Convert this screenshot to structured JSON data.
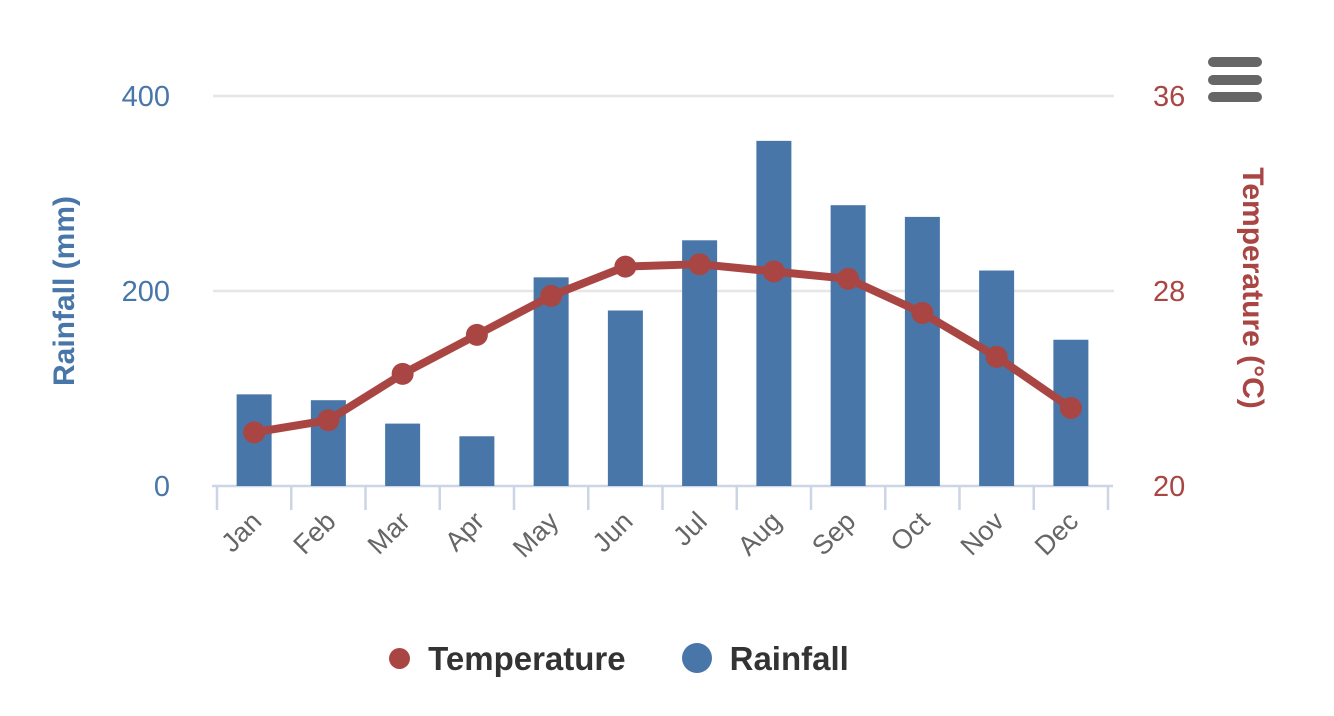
{
  "chart_data": {
    "type": "combo: column + line, dual y-axes",
    "categories": [
      "Jan",
      "Feb",
      "Mar",
      "Apr",
      "May",
      "Jun",
      "Jul",
      "Aug",
      "Sep",
      "Oct",
      "Nov",
      "Dec"
    ],
    "series": [
      {
        "name": "Temperature",
        "chart_type": "line",
        "y_axis": "right",
        "color": "#a94643",
        "values": [
          22.2,
          22.7,
          24.6,
          26.2,
          27.8,
          29.0,
          29.1,
          28.8,
          28.5,
          27.1,
          25.3,
          23.2
        ]
      },
      {
        "name": "Rainfall",
        "chart_type": "column",
        "y_axis": "left",
        "color": "#4876a8",
        "values": [
          94,
          88,
          64,
          51,
          214,
          180,
          252,
          354,
          288,
          276,
          221,
          150
        ]
      }
    ],
    "y_axis_left": {
      "title": "Rainfall (mm)",
      "ticks": [
        0,
        200,
        400
      ],
      "range": [
        0,
        400
      ],
      "color": "#4876a8"
    },
    "y_axis_right": {
      "title": "Temperature (°C)",
      "ticks": [
        20,
        28,
        36
      ],
      "range": [
        20,
        36
      ],
      "color": "#a94643"
    },
    "x_axis": {
      "label_color": "#666666",
      "label_rotation": -45
    },
    "legend": {
      "position": "bottom",
      "items": [
        "Temperature",
        "Rainfall"
      ],
      "text_color": "#333333"
    },
    "grid": true,
    "gridline_color": "#e6e6e6",
    "axis_line_color": "#ccd5e6",
    "background": "#ffffff"
  },
  "toolbar": {
    "context_menu_icon": "hamburger-icon",
    "icon_color": "#666666"
  }
}
